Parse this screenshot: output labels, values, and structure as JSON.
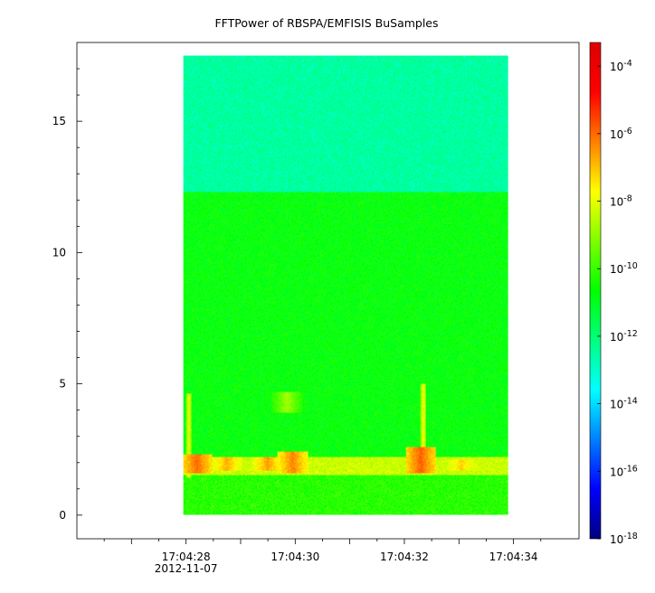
{
  "chart_data": {
    "type": "heatmap",
    "title": "FFTPower of RBSPA/EMFISIS  BuSamples",
    "xlabel": "",
    "ylabel": "",
    "x_ticks": [
      {
        "label": "17:04:28",
        "sublabel": "2012-11-07",
        "value": 28
      },
      {
        "label": "17:04:30",
        "sublabel": "",
        "value": 30
      },
      {
        "label": "17:04:32",
        "sublabel": "",
        "value": 32
      },
      {
        "label": "17:04:34",
        "sublabel": "",
        "value": 34
      }
    ],
    "x_range_seconds": [
      26.0,
      35.2
    ],
    "data_extent_seconds": [
      27.95,
      33.9
    ],
    "y_ticks": [
      0,
      5,
      10,
      15
    ],
    "ylim": [
      -0.9,
      18.0
    ],
    "data_extent_y": [
      0,
      17.5
    ],
    "colorbar": {
      "scale": "log",
      "tick_base": "10",
      "tick_exponents": [
        "-4",
        "-6",
        "-8",
        "-10",
        "-12",
        "-14",
        "-16",
        "-18"
      ],
      "range_log10": [
        -18.0,
        -3.3
      ],
      "colors": [
        "#00007f",
        "#0000ff",
        "#007fff",
        "#00ffff",
        "#00ff7f",
        "#00ff00",
        "#7fff00",
        "#ffff00",
        "#ff7f00",
        "#ff0000",
        "#dd0000"
      ]
    },
    "bands": [
      {
        "y_from": 12.3,
        "y_to": 17.5,
        "log10_power": -12.5
      },
      {
        "y_from": 2.2,
        "y_to": 12.3,
        "log10_power": -10.7
      },
      {
        "y_from": 1.5,
        "y_to": 2.2,
        "log10_power": -8.3
      },
      {
        "y_from": 0,
        "y_to": 1.5,
        "log10_power": -10.2
      }
    ],
    "bursts": [
      {
        "t": 28.05,
        "y_from": 1.4,
        "y_to": 4.6,
        "log10_power": -7.8
      },
      {
        "t": 29.85,
        "y_from": 3.9,
        "y_to": 4.7,
        "log10_power": -8.8
      },
      {
        "t": 32.35,
        "y_from": 1.5,
        "y_to": 5.0,
        "log10_power": -7.6
      },
      {
        "t": 28.2,
        "y_from": 1.6,
        "y_to": 2.3,
        "log10_power": -6.0
      },
      {
        "t": 29.95,
        "y_from": 1.6,
        "y_to": 2.4,
        "log10_power": -6.3
      },
      {
        "t": 32.3,
        "y_from": 1.6,
        "y_to": 2.6,
        "log10_power": -5.9
      },
      {
        "t": 28.75,
        "y_from": 1.7,
        "y_to": 2.2,
        "log10_power": -6.8
      },
      {
        "t": 29.5,
        "y_from": 1.7,
        "y_to": 2.2,
        "log10_power": -6.6
      },
      {
        "t": 33.05,
        "y_from": 1.7,
        "y_to": 2.1,
        "log10_power": -7.2
      }
    ]
  }
}
